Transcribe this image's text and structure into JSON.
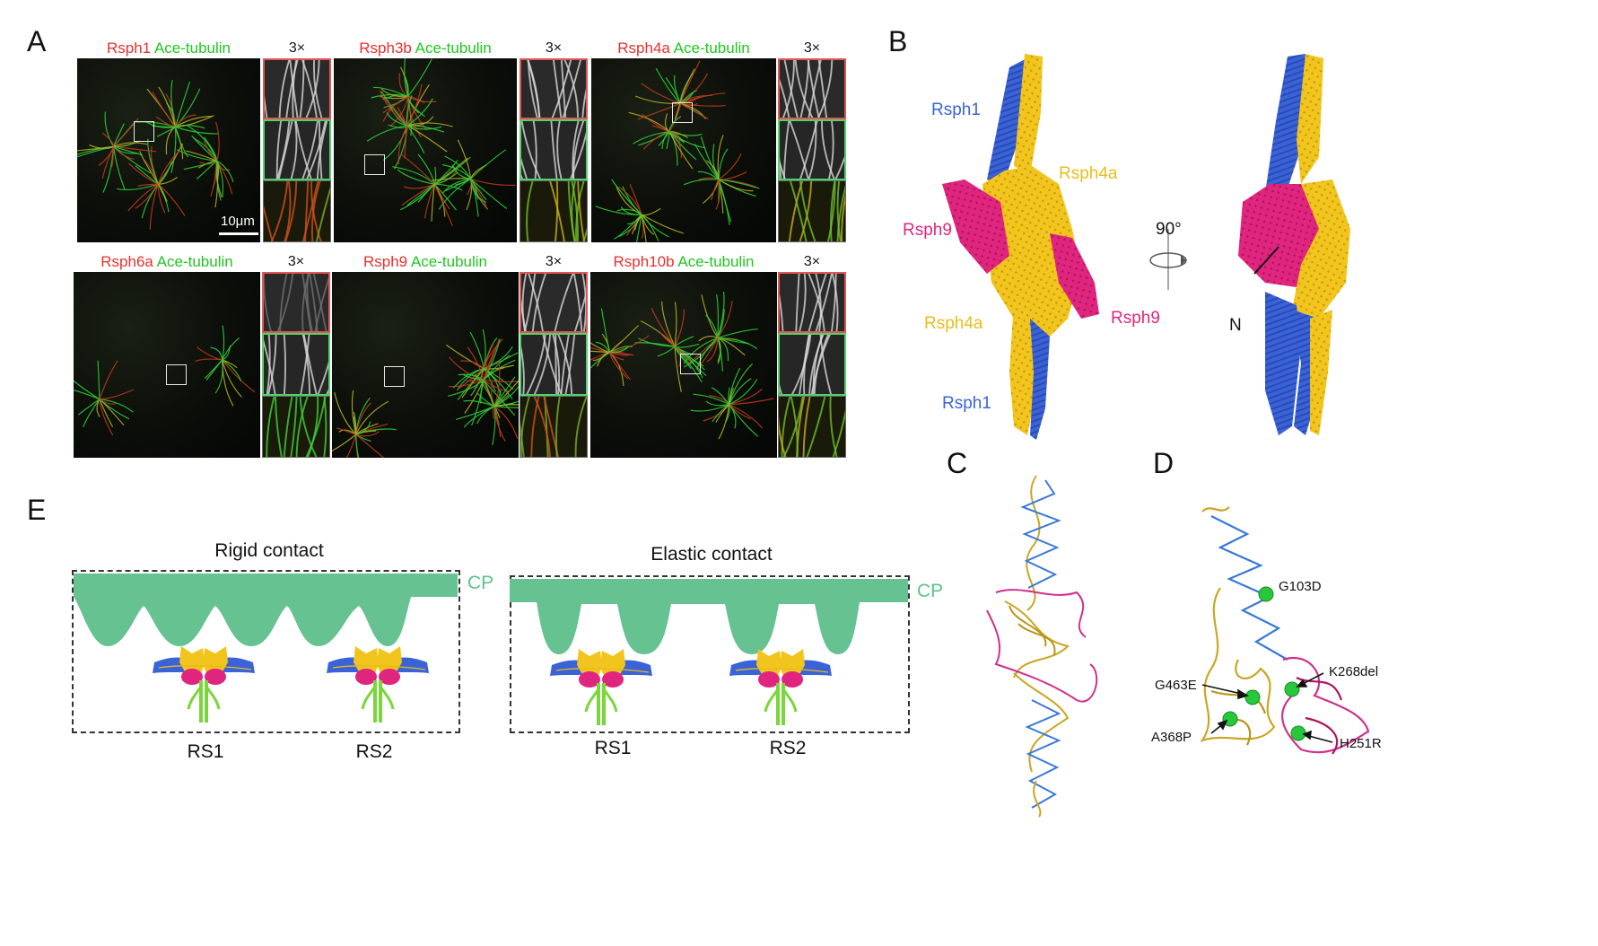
{
  "panels": {
    "a": "A",
    "b": "B",
    "c": "C",
    "d": "D",
    "e": "E"
  },
  "panel_a": {
    "counterstain": "Ace-tubulin",
    "zoom_label": "3×",
    "scale_bar": "10μm",
    "images": [
      {
        "protein": "Rsph1"
      },
      {
        "protein": "Rsph3b"
      },
      {
        "protein": "Rsph4a"
      },
      {
        "protein": "Rsph6a"
      },
      {
        "protein": "Rsph9"
      },
      {
        "protein": "Rsph10b"
      }
    ]
  },
  "panel_b": {
    "labels": {
      "rsph1_top": "Rsph1",
      "rsph4a_right": "Rsph4a",
      "rsph9_left": "Rsph9",
      "rsph9_right": "Rsph9",
      "rsph4a_left": "Rsph4a",
      "rsph1_bottom": "Rsph1",
      "rotation": "90°",
      "n_terminus": "N"
    },
    "colors": {
      "rsph1": "#3a63d8",
      "rsph4a": "#f2c51e",
      "rsph9": "#e0257f"
    }
  },
  "panel_d": {
    "mutations": [
      "G103D",
      "K268del",
      "G463E",
      "A368P",
      "H251R"
    ]
  },
  "panel_e": {
    "left_title": "Rigid contact",
    "right_title": "Elastic contact",
    "cp": "CP",
    "rs1": "RS1",
    "rs2": "RS2",
    "colors": {
      "cp": "#66c391"
    }
  }
}
